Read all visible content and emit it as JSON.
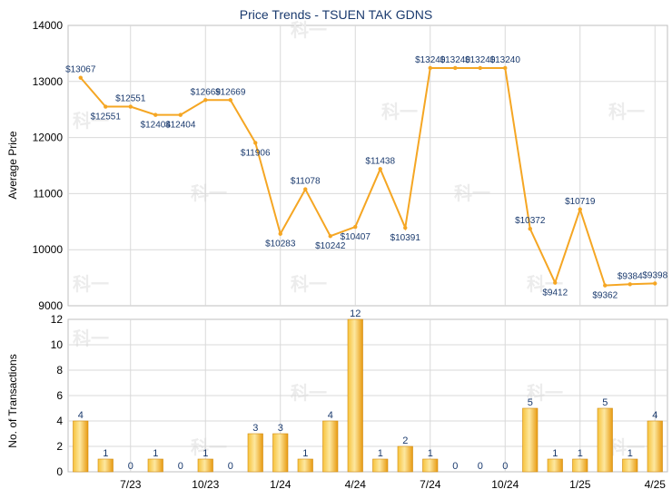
{
  "chart_data": [
    {
      "type": "line",
      "title": "Price Trends - TSUEN TAK GDNS",
      "ylabel": "Average Price",
      "ylim": [
        9000,
        14000
      ],
      "yticks": [
        9000,
        10000,
        11000,
        12000,
        13000,
        14000
      ],
      "grid": true,
      "watermark_text": "科一",
      "series": [
        {
          "values": [
            13067,
            12551,
            12551,
            12404,
            12404,
            12669,
            12669,
            11906,
            10283,
            11078,
            10242,
            10407,
            11438,
            10391,
            13240,
            13240,
            13240,
            13240,
            10372,
            9412,
            10719,
            9362,
            9384,
            9398
          ],
          "labels": [
            "$13067",
            "$12551",
            "$12551",
            "$12404",
            "$12404",
            "$12669",
            "$12669",
            "$11906",
            "$10283",
            "$11078",
            "$10242",
            "$10407",
            "$11438",
            "$10391",
            "$13240",
            "$13240",
            "$13240",
            "$13240",
            "$10372",
            "$9412",
            "$10719",
            "$9362",
            "$9384",
            "$9398"
          ],
          "color": "#f5a623"
        }
      ]
    },
    {
      "type": "bar",
      "ylabel": "No. of Transactions",
      "ylim": [
        0,
        12
      ],
      "yticks": [
        0,
        2,
        4,
        6,
        8,
        10,
        12
      ],
      "x_tick_labels": [
        "7/23",
        "10/23",
        "1/24",
        "4/24",
        "7/24",
        "10/24",
        "1/25",
        "4/25"
      ],
      "grid": true,
      "series": [
        {
          "values": [
            4,
            1,
            0,
            1,
            0,
            1,
            0,
            3,
            3,
            1,
            4,
            12,
            1,
            2,
            1,
            0,
            0,
            0,
            5,
            1,
            1,
            5,
            1,
            4
          ],
          "color": "#f5b220"
        }
      ]
    }
  ]
}
